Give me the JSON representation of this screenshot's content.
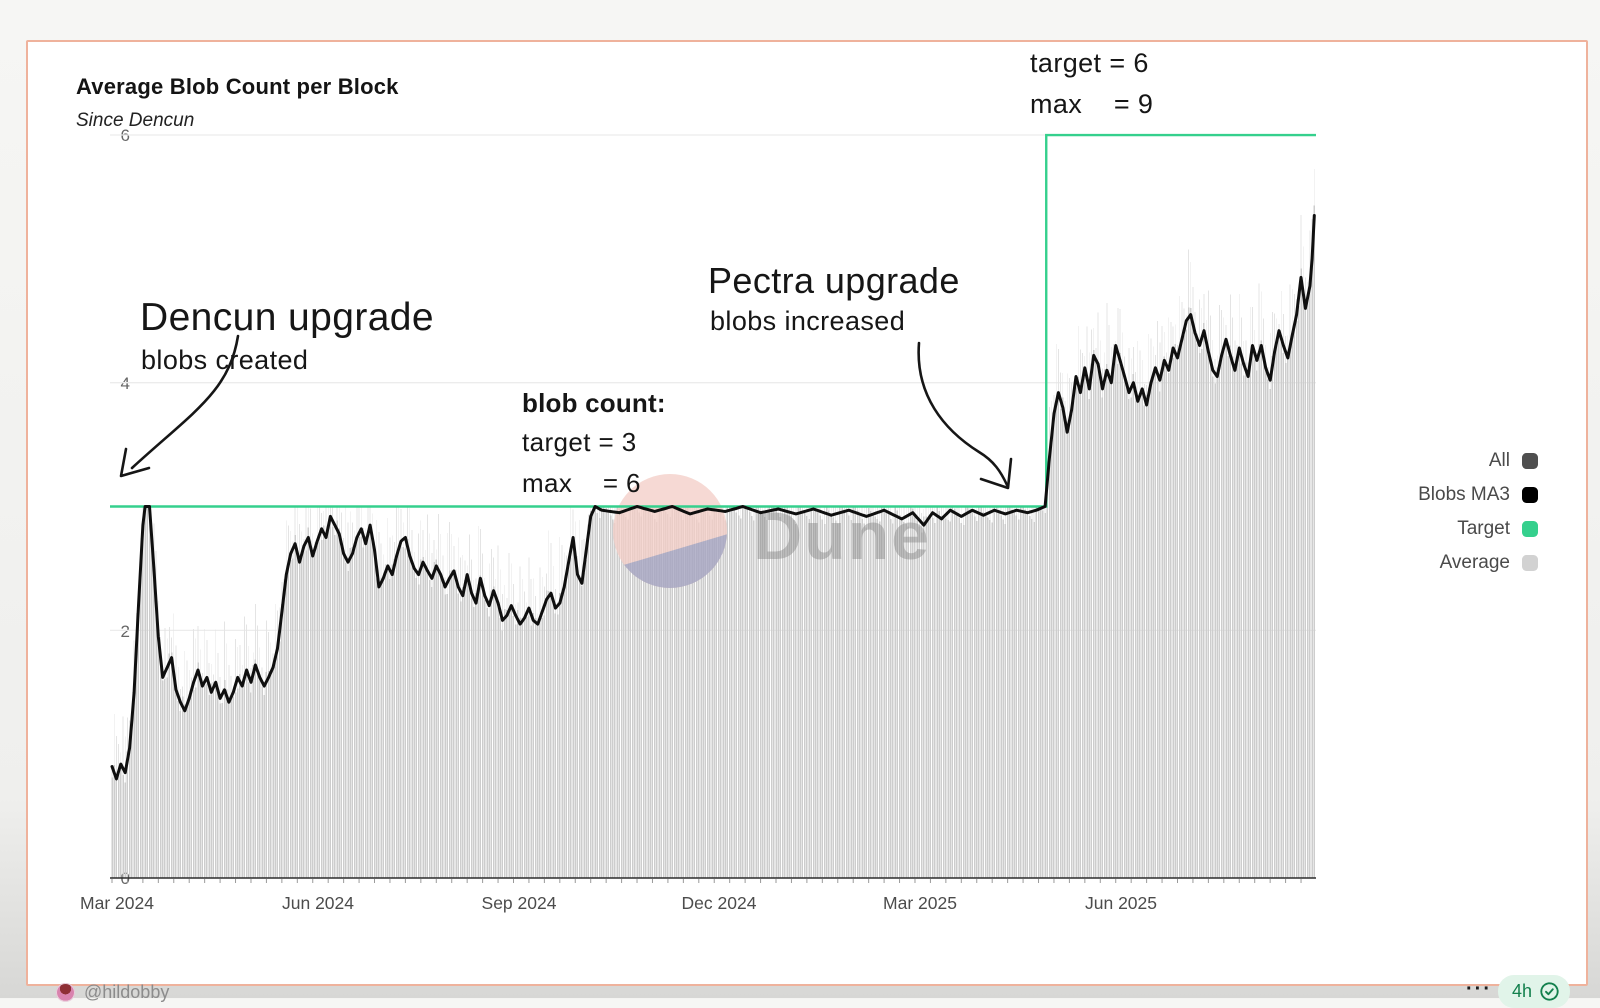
{
  "card": {
    "title": "Average Blob Count per Block",
    "subtitle": "Since Dencun"
  },
  "annotations": {
    "dencun": {
      "title": "Dencun upgrade",
      "subtitle": "blobs created"
    },
    "blob_count": {
      "heading": "blob count:",
      "line1": "target = 3",
      "line2": "max    = 6"
    },
    "pectra": {
      "title": "Pectra upgrade",
      "subtitle": "blobs increased"
    },
    "post_pectra": {
      "line1": "target = 6",
      "line2": "max    = 9"
    }
  },
  "legend": {
    "items": [
      {
        "label": "All",
        "color": "#4f4f4f"
      },
      {
        "label": "Blobs MA3",
        "color": "#000000"
      },
      {
        "label": "Target",
        "color": "#35d08d"
      },
      {
        "label": "Average",
        "color": "#d2d2d2"
      }
    ]
  },
  "watermark": {
    "text": "Dune"
  },
  "footer": {
    "author": "@hildobby",
    "menu_dots": "···",
    "badge_time": "4h"
  },
  "colors": {
    "target_green": "#35d08d",
    "bar_gray": "#cdcdcd",
    "whisker_gray": "#e4e4e4",
    "ma3_black": "#0f0f0f",
    "card_border": "#efb29c",
    "badge_green": "#13804d"
  },
  "chart_data": {
    "type": "bar",
    "title": "Average Blob Count per Block",
    "subtitle": "Since Dencun",
    "xlabel": "",
    "ylabel": "",
    "ylim": [
      0,
      6
    ],
    "y_ticks": [
      0,
      2,
      4,
      6
    ],
    "y_tick_labels": [
      "0",
      "2",
      "4",
      "6"
    ],
    "x_axis": {
      "labels": [
        "Mar 2024",
        "Jun 2024",
        "Sep 2024",
        "Dec 2024",
        "Mar 2025",
        "Jun 2025"
      ],
      "label_days": [
        1.5,
        92.5,
        184.5,
        275.5,
        365.5,
        457.5
      ],
      "days_total": 546
    },
    "pectra_day": 423.5,
    "target_series": {
      "name": "Target",
      "segments": [
        {
          "from_day": 0,
          "to_day": 423.5,
          "value": 3
        },
        {
          "from_day": 423.5,
          "to_day": 546,
          "value": 6
        }
      ]
    },
    "ma3_series": {
      "name": "Blobs MA3",
      "points": [
        [
          0,
          0.9
        ],
        [
          2,
          0.8
        ],
        [
          4,
          0.92
        ],
        [
          6,
          0.85
        ],
        [
          8,
          1.05
        ],
        [
          10,
          1.5
        ],
        [
          12,
          2.2
        ],
        [
          14,
          2.85
        ],
        [
          15,
          3.0
        ],
        [
          17,
          3.0
        ],
        [
          19,
          2.5
        ],
        [
          21,
          1.95
        ],
        [
          23,
          1.62
        ],
        [
          25,
          1.7
        ],
        [
          27,
          1.78
        ],
        [
          29,
          1.52
        ],
        [
          31,
          1.42
        ],
        [
          33,
          1.35
        ],
        [
          35,
          1.45
        ],
        [
          37,
          1.58
        ],
        [
          39,
          1.68
        ],
        [
          41,
          1.55
        ],
        [
          43,
          1.62
        ],
        [
          45,
          1.5
        ],
        [
          47,
          1.58
        ],
        [
          49,
          1.45
        ],
        [
          51,
          1.52
        ],
        [
          53,
          1.42
        ],
        [
          55,
          1.5
        ],
        [
          57,
          1.62
        ],
        [
          59,
          1.55
        ],
        [
          61,
          1.68
        ],
        [
          63,
          1.58
        ],
        [
          65,
          1.72
        ],
        [
          67,
          1.62
        ],
        [
          69,
          1.55
        ],
        [
          71,
          1.62
        ],
        [
          73,
          1.7
        ],
        [
          75,
          1.85
        ],
        [
          77,
          2.15
        ],
        [
          79,
          2.45
        ],
        [
          81,
          2.62
        ],
        [
          83,
          2.7
        ],
        [
          85,
          2.55
        ],
        [
          87,
          2.68
        ],
        [
          89,
          2.75
        ],
        [
          91,
          2.6
        ],
        [
          93,
          2.72
        ],
        [
          95,
          2.82
        ],
        [
          97,
          2.75
        ],
        [
          99,
          2.92
        ],
        [
          101,
          2.85
        ],
        [
          103,
          2.78
        ],
        [
          105,
          2.62
        ],
        [
          107,
          2.55
        ],
        [
          109,
          2.62
        ],
        [
          111,
          2.75
        ],
        [
          113,
          2.82
        ],
        [
          115,
          2.7
        ],
        [
          117,
          2.85
        ],
        [
          119,
          2.65
        ],
        [
          121,
          2.35
        ],
        [
          123,
          2.42
        ],
        [
          125,
          2.52
        ],
        [
          127,
          2.45
        ],
        [
          129,
          2.6
        ],
        [
          131,
          2.72
        ],
        [
          133,
          2.75
        ],
        [
          135,
          2.6
        ],
        [
          137,
          2.5
        ],
        [
          139,
          2.45
        ],
        [
          141,
          2.55
        ],
        [
          143,
          2.48
        ],
        [
          145,
          2.42
        ],
        [
          147,
          2.52
        ],
        [
          149,
          2.45
        ],
        [
          151,
          2.35
        ],
        [
          153,
          2.42
        ],
        [
          155,
          2.48
        ],
        [
          157,
          2.35
        ],
        [
          159,
          2.28
        ],
        [
          161,
          2.45
        ],
        [
          163,
          2.3
        ],
        [
          165,
          2.22
        ],
        [
          167,
          2.42
        ],
        [
          169,
          2.28
        ],
        [
          171,
          2.2
        ],
        [
          173,
          2.32
        ],
        [
          175,
          2.22
        ],
        [
          177,
          2.08
        ],
        [
          179,
          2.12
        ],
        [
          181,
          2.2
        ],
        [
          183,
          2.12
        ],
        [
          185,
          2.05
        ],
        [
          187,
          2.1
        ],
        [
          189,
          2.18
        ],
        [
          191,
          2.08
        ],
        [
          193,
          2.05
        ],
        [
          195,
          2.15
        ],
        [
          197,
          2.25
        ],
        [
          199,
          2.3
        ],
        [
          201,
          2.18
        ],
        [
          203,
          2.22
        ],
        [
          205,
          2.35
        ],
        [
          207,
          2.55
        ],
        [
          209,
          2.75
        ],
        [
          211,
          2.45
        ],
        [
          213,
          2.38
        ],
        [
          215,
          2.65
        ],
        [
          217,
          2.92
        ],
        [
          219,
          3.0
        ],
        [
          222,
          2.97
        ],
        [
          230,
          2.95
        ],
        [
          238,
          3.0
        ],
        [
          246,
          2.96
        ],
        [
          254,
          3.0
        ],
        [
          262,
          2.94
        ],
        [
          270,
          2.98
        ],
        [
          278,
          2.96
        ],
        [
          286,
          3.0
        ],
        [
          294,
          2.95
        ],
        [
          302,
          2.98
        ],
        [
          310,
          2.94
        ],
        [
          318,
          2.98
        ],
        [
          326,
          2.93
        ],
        [
          334,
          2.97
        ],
        [
          342,
          2.92
        ],
        [
          350,
          2.97
        ],
        [
          358,
          2.9
        ],
        [
          363,
          2.95
        ],
        [
          368,
          2.85
        ],
        [
          372,
          2.95
        ],
        [
          376,
          2.9
        ],
        [
          380,
          2.97
        ],
        [
          385,
          2.92
        ],
        [
          390,
          2.97
        ],
        [
          395,
          2.93
        ],
        [
          400,
          2.97
        ],
        [
          405,
          2.94
        ],
        [
          410,
          2.97
        ],
        [
          415,
          2.95
        ],
        [
          419,
          2.97
        ],
        [
          423,
          3.0
        ],
        [
          425,
          3.4
        ],
        [
          427,
          3.75
        ],
        [
          429,
          3.92
        ],
        [
          431,
          3.8
        ],
        [
          433,
          3.6
        ],
        [
          435,
          3.78
        ],
        [
          437,
          4.05
        ],
        [
          439,
          3.92
        ],
        [
          441,
          4.12
        ],
        [
          443,
          3.95
        ],
        [
          445,
          4.22
        ],
        [
          447,
          4.15
        ],
        [
          449,
          3.95
        ],
        [
          451,
          4.1
        ],
        [
          453,
          4.0
        ],
        [
          455,
          4.3
        ],
        [
          457,
          4.18
        ],
        [
          459,
          4.05
        ],
        [
          461,
          3.92
        ],
        [
          463,
          4.0
        ],
        [
          465,
          3.85
        ],
        [
          467,
          3.95
        ],
        [
          469,
          3.82
        ],
        [
          471,
          4.0
        ],
        [
          473,
          4.12
        ],
        [
          475,
          4.02
        ],
        [
          477,
          4.18
        ],
        [
          479,
          4.1
        ],
        [
          481,
          4.28
        ],
        [
          483,
          4.2
        ],
        [
          485,
          4.35
        ],
        [
          487,
          4.5
        ],
        [
          489,
          4.55
        ],
        [
          491,
          4.4
        ],
        [
          493,
          4.3
        ],
        [
          495,
          4.42
        ],
        [
          497,
          4.25
        ],
        [
          499,
          4.1
        ],
        [
          501,
          4.05
        ],
        [
          503,
          4.22
        ],
        [
          505,
          4.35
        ],
        [
          507,
          4.22
        ],
        [
          509,
          4.1
        ],
        [
          511,
          4.28
        ],
        [
          513,
          4.15
        ],
        [
          515,
          4.05
        ],
        [
          517,
          4.3
        ],
        [
          519,
          4.18
        ],
        [
          521,
          4.3
        ],
        [
          523,
          4.12
        ],
        [
          525,
          4.02
        ],
        [
          527,
          4.25
        ],
        [
          529,
          4.42
        ],
        [
          531,
          4.3
        ],
        [
          533,
          4.2
        ],
        [
          535,
          4.38
        ],
        [
          537,
          4.55
        ],
        [
          539,
          4.85
        ],
        [
          541,
          4.6
        ],
        [
          543,
          4.78
        ],
        [
          544,
          5.0
        ],
        [
          545,
          5.35
        ]
      ]
    },
    "average_series": {
      "name": "Average",
      "note": "daily gray bars with light max-whiskers, capped at the target line (3 before Pectra, 6 after)"
    }
  }
}
